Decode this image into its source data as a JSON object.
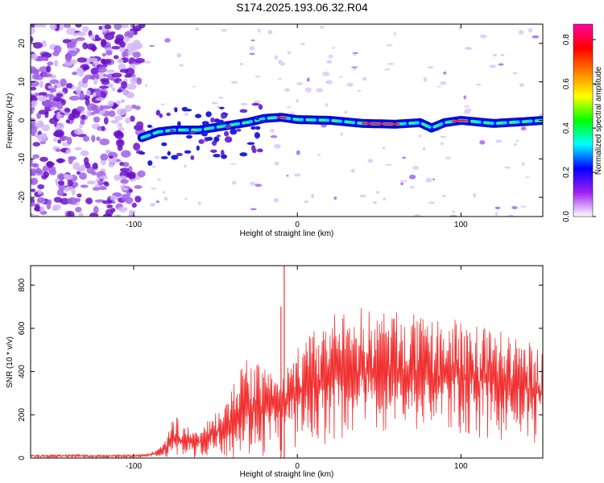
{
  "figure": {
    "title": "S174.2025.193.06.32.R04"
  },
  "chart_data": [
    {
      "type": "heatmap",
      "xlabel": "Height of straight line (km)",
      "ylabel": "Frequency (Hz)",
      "xlim": [
        -163,
        150
      ],
      "ylim": [
        -25,
        25
      ],
      "xticks": [
        -100,
        0,
        100
      ],
      "yticks": [
        -20,
        -10,
        0,
        10,
        20
      ],
      "colorbar": {
        "label": "Normalized spectral amplitude",
        "range": [
          0,
          0.87
        ],
        "ticks": [
          0.0,
          0.2,
          0.4,
          0.6,
          0.8
        ],
        "colormap": [
          "#ffffff",
          "#a020f0",
          "#0000ff",
          "#00ffff",
          "#00ff00",
          "#ffff00",
          "#ff8000",
          "#ff0000",
          "#ff00a0"
        ]
      },
      "ridge": [
        {
          "x": -95,
          "y": -4.5
        },
        {
          "x": -85,
          "y": -3.0
        },
        {
          "x": -75,
          "y": -2.5
        },
        {
          "x": -60,
          "y": -2.5
        },
        {
          "x": -45,
          "y": -1.5
        },
        {
          "x": -30,
          "y": -0.5
        },
        {
          "x": -20,
          "y": 0.5
        },
        {
          "x": -10,
          "y": 0.8
        },
        {
          "x": 0,
          "y": 0.2
        },
        {
          "x": 20,
          "y": 0.0
        },
        {
          "x": 40,
          "y": -0.8
        },
        {
          "x": 60,
          "y": -1.0
        },
        {
          "x": 75,
          "y": -0.6
        },
        {
          "x": 82,
          "y": -2.0
        },
        {
          "x": 90,
          "y": -0.6
        },
        {
          "x": 100,
          "y": 0.0
        },
        {
          "x": 120,
          "y": -0.8
        },
        {
          "x": 140,
          "y": -0.3
        },
        {
          "x": 150,
          "y": 0.0
        }
      ],
      "noise_region_x": [
        -163,
        -95
      ]
    },
    {
      "type": "line",
      "xlabel": "Height of straight line (km)",
      "ylabel": "SNR (10 * v/v)",
      "xlim": [
        -163,
        150
      ],
      "ylim": [
        0,
        890
      ],
      "xticks": [
        -100,
        0,
        100
      ],
      "yticks": [
        0,
        200,
        400,
        600,
        800
      ],
      "color": "#f03030",
      "series": [
        {
          "x": [
            -163,
            -140,
            -120,
            -100,
            -90,
            -85,
            -80,
            -75,
            -70,
            -60,
            -50,
            -40,
            -30,
            -20,
            -10,
            0,
            10,
            20,
            30,
            40,
            50,
            60,
            70,
            80,
            90,
            100,
            110,
            120,
            130,
            140,
            150
          ],
          "lower": [
            0,
            0,
            0,
            0,
            0,
            0,
            0,
            0,
            0,
            0,
            0,
            0,
            0,
            0,
            0,
            20,
            40,
            60,
            80,
            100,
            100,
            100,
            100,
            100,
            100,
            100,
            80,
            60,
            60,
            60,
            60
          ],
          "upper": [
            15,
            18,
            15,
            15,
            20,
            40,
            90,
            210,
            160,
            120,
            220,
            350,
            470,
            420,
            360,
            520,
            590,
            660,
            680,
            700,
            690,
            680,
            670,
            630,
            640,
            640,
            620,
            610,
            570,
            540,
            520
          ],
          "typical": [
            10,
            10,
            10,
            10,
            15,
            25,
            50,
            100,
            80,
            70,
            120,
            170,
            220,
            240,
            250,
            300,
            330,
            360,
            380,
            390,
            390,
            390,
            380,
            370,
            380,
            380,
            360,
            350,
            330,
            320,
            300
          ]
        }
      ],
      "spikes": [
        {
          "x": -8,
          "y": 890
        },
        {
          "x": -10,
          "y": 700
        }
      ]
    }
  ]
}
